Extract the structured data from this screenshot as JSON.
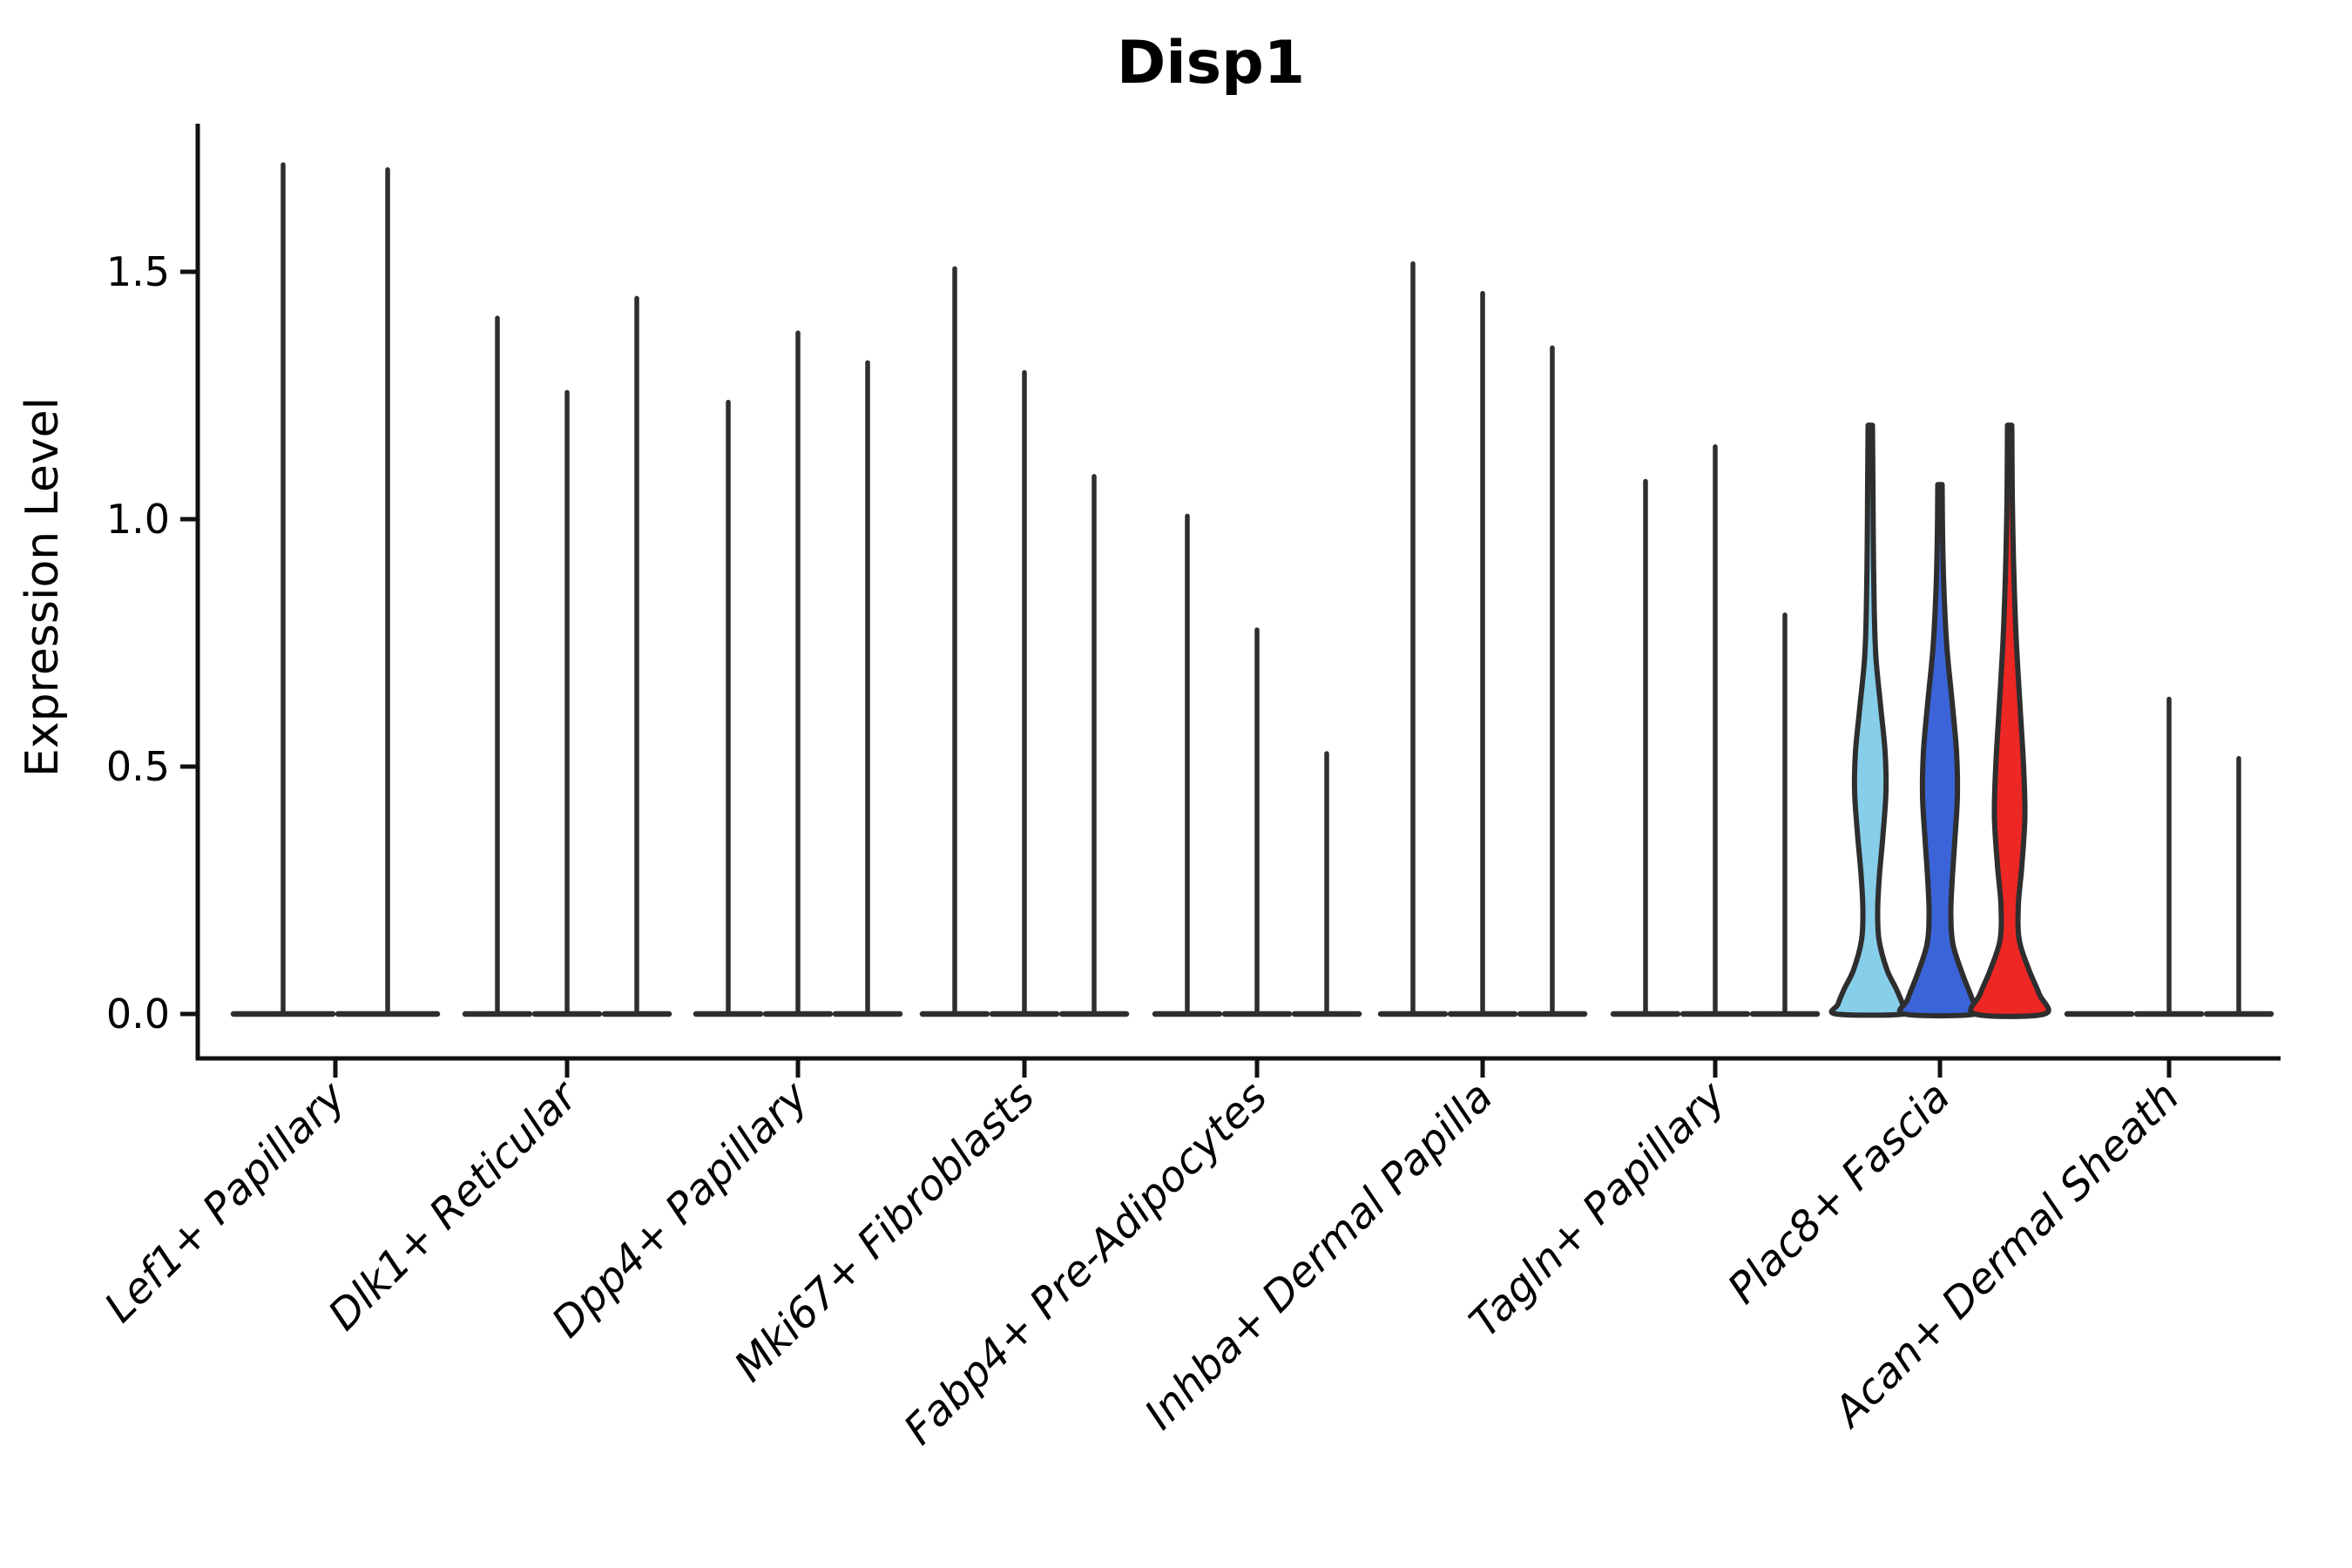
{
  "title": "Disp1",
  "y_axis": {
    "label": "Expression Level",
    "tick_labels": [
      "0.0",
      "0.5",
      "1.0",
      "1.5"
    ],
    "tick_values": [
      0.0,
      0.5,
      1.0,
      1.5
    ]
  },
  "x_axis": {
    "tick_labels": [
      "Lef1+ Papillary",
      "Dlk1+ Reticular",
      "Dpp4+ Papillary",
      "Mki67+ Fibroblasts",
      "Fabp4+ Pre-Adipocytes",
      "Inhba+ Dermal Papilla",
      "Tagln+ Papillary",
      "Plac8+ Fascia",
      "Acan+ Dermal Sheath"
    ]
  },
  "colors": {
    "axis": "#111111",
    "violin_outline": "#2e2e2e",
    "highlight_skyblue": "#87CEEB",
    "highlight_blue": "#3B64D8",
    "highlight_red": "#ED2724"
  },
  "chart_data": {
    "type": "violin",
    "title": "Disp1",
    "xlabel": "",
    "ylabel": "Expression Level",
    "ylim": [
      -0.1,
      1.8
    ],
    "grid": false,
    "legend": "none",
    "categories": [
      "Lef1+ Papillary",
      "Dlk1+ Reticular",
      "Dpp4+ Papillary",
      "Mki67+ Fibroblasts",
      "Fabp4+ Pre-Adipocytes",
      "Inhba+ Dermal Papilla",
      "Tagln+ Papillary",
      "Plac8+ Fascia",
      "Acan+ Dermal Sheath"
    ],
    "description": "Split violin plot of Disp1 expression; nearly all violins collapse to a flat base at 0 with a thin density spike up to the max expressing cell; only the Plac8+ Fascia group shows wide colored violins.",
    "groups": [
      {
        "category": "Lef1+ Papillary",
        "violins": [
          {
            "max": 1.72,
            "fill": null
          },
          {
            "max": 1.71,
            "fill": null
          }
        ]
      },
      {
        "category": "Dlk1+ Reticular",
        "violins": [
          {
            "max": 1.41,
            "fill": null
          },
          {
            "max": 1.26,
            "fill": null
          },
          {
            "max": 1.45,
            "fill": null
          }
        ]
      },
      {
        "category": "Dpp4+ Papillary",
        "violins": [
          {
            "max": 1.24,
            "fill": null
          },
          {
            "max": 1.38,
            "fill": null
          },
          {
            "max": 1.32,
            "fill": null
          }
        ]
      },
      {
        "category": "Mki67+ Fibroblasts",
        "violins": [
          {
            "max": 1.51,
            "fill": null
          },
          {
            "max": 1.3,
            "fill": null
          },
          {
            "max": 1.09,
            "fill": null
          }
        ]
      },
      {
        "category": "Fabp4+ Pre-Adipocytes",
        "violins": [
          {
            "max": 1.01,
            "fill": null
          },
          {
            "max": 0.78,
            "fill": null
          },
          {
            "max": 0.53,
            "fill": null
          }
        ]
      },
      {
        "category": "Inhba+ Dermal Papilla",
        "violins": [
          {
            "max": 1.52,
            "fill": null
          },
          {
            "max": 1.46,
            "fill": null
          },
          {
            "max": 1.35,
            "fill": null
          }
        ]
      },
      {
        "category": "Tagln+ Papillary",
        "violins": [
          {
            "max": 1.08,
            "fill": null
          },
          {
            "max": 1.15,
            "fill": null
          },
          {
            "max": 0.81,
            "fill": null
          }
        ]
      },
      {
        "category": "Plac8+ Fascia",
        "violins": [
          {
            "max": 1.19,
            "fill": "#87CEEB",
            "profile": [
              [
                1.19,
                2.5
              ],
              [
                1.08,
                3
              ],
              [
                0.95,
                3.5
              ],
              [
                0.82,
                4.5
              ],
              [
                0.72,
                6.5
              ],
              [
                0.62,
                12
              ],
              [
                0.53,
                17
              ],
              [
                0.45,
                18
              ],
              [
                0.36,
                14.5
              ],
              [
                0.28,
                10.5
              ],
              [
                0.21,
                8.5
              ],
              [
                0.15,
                10
              ],
              [
                0.09,
                19
              ],
              [
                0.05,
                30
              ],
              [
                0.02,
                37
              ],
              [
                0.0,
                39
              ]
            ]
          },
          {
            "max": 1.07,
            "fill": "#3B64D8",
            "profile": [
              [
                1.07,
                2.5
              ],
              [
                0.97,
                3
              ],
              [
                0.86,
                4.5
              ],
              [
                0.74,
                8
              ],
              [
                0.63,
                14
              ],
              [
                0.53,
                19
              ],
              [
                0.44,
                20
              ],
              [
                0.35,
                17
              ],
              [
                0.27,
                14
              ],
              [
                0.2,
                12.5
              ],
              [
                0.14,
                15
              ],
              [
                0.08,
                26
              ],
              [
                0.03,
                37
              ],
              [
                0.0,
                41
              ]
            ]
          },
          {
            "max": 1.19,
            "fill": "#ED2724",
            "profile": [
              [
                1.19,
                2.5
              ],
              [
                1.05,
                3
              ],
              [
                0.95,
                4
              ],
              [
                0.85,
                5.5
              ],
              [
                0.74,
                8
              ],
              [
                0.62,
                12
              ],
              [
                0.5,
                16
              ],
              [
                0.4,
                17.5
              ],
              [
                0.3,
                14
              ],
              [
                0.22,
                10
              ],
              [
                0.15,
                11
              ],
              [
                0.09,
                22
              ],
              [
                0.04,
                34
              ],
              [
                0.0,
                40
              ]
            ]
          }
        ]
      },
      {
        "category": "Acan+ Dermal Sheath",
        "violins": [
          {
            "max": 0.0,
            "flat": true,
            "fill": null
          },
          {
            "max": 0.64,
            "fill": null
          },
          {
            "max": 0.52,
            "fill": null
          }
        ]
      }
    ]
  }
}
